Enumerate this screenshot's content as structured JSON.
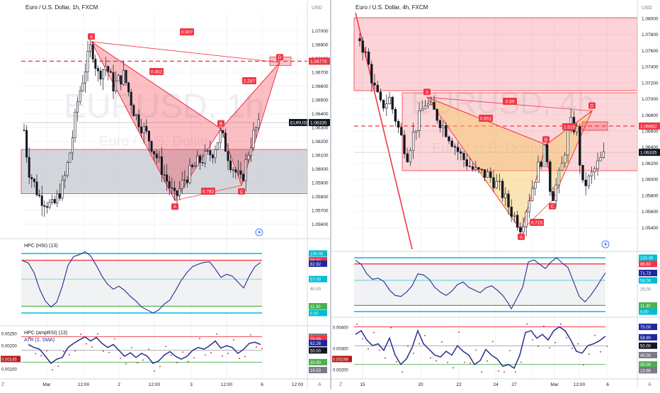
{
  "left": {
    "title": "Euro / U.S. Dollar, 1h, FXCM",
    "watermark": [
      "EURUSD, 1h",
      "Euro / U.S. Dollar"
    ],
    "axis_unit": "USD",
    "price_ticks": [
      "1.07000",
      "1.06900",
      "1.06800",
      "1.06700",
      "1.06600",
      "1.06500",
      "1.06400",
      "1.06300",
      "1.06200",
      "1.06100",
      "1.06000",
      "1.05900",
      "1.05800",
      "1.05700",
      "1.05600"
    ],
    "price_ylim": [
      1.0553,
      1.0713
    ],
    "current_price_label": "EURUSD",
    "current_price": "1.06335",
    "dashed_price": "1.06779",
    "zone_range": [
      1.0582,
      1.0614
    ],
    "pattern_points": {
      "X": 1.0692,
      "A": 1.0577,
      "B": 1.0629,
      "C": 1.0588,
      "D": 1.0677
    },
    "ratios": {
      "XB": "0.907",
      "XA_AB": "0.452",
      "BD": "2.287",
      "AC": "0.782"
    },
    "x_labels": [
      "Mar",
      "12:00",
      "2",
      "12:00",
      "3",
      "12:00",
      "6",
      "12:00"
    ],
    "ind1_title": "HPC (HSI) (13)",
    "ind1_labels": [
      "100.00",
      "88.60",
      "82.92",
      "57.00",
      "40.00",
      "11.30",
      "0.00"
    ],
    "ind2_title": "HPC (ampRSI) (13)",
    "ind2_sub": "ATR (2, SMA)",
    "ind2_labels": [
      "73.26",
      "70.00",
      "62.28",
      "50.00",
      "30.00",
      "16.53"
    ],
    "ind2_left_labels": [
      "0.00250",
      "0.00200",
      "0.00145",
      "0.00100"
    ],
    "corner_left": "Z",
    "corner_right": "A"
  },
  "right": {
    "title": "Euro / U.S. Dollar, 4h, FXCM",
    "watermark": [
      "EURUSD, 4h",
      "Euro / U.S. Dollar"
    ],
    "axis_unit": "USD",
    "price_ticks": [
      "1.08000",
      "1.07800",
      "1.07600",
      "1.07400",
      "1.07200",
      "1.07000",
      "1.06800",
      "1.06600",
      "1.06400",
      "1.06200",
      "1.06000",
      "1.05800",
      "1.05600",
      "1.05400"
    ],
    "price_ylim": [
      1.0528,
      1.0807
    ],
    "current_price": "1.06335",
    "dashed_price": "1.06662",
    "pattern_points": {
      "X": 1.0702,
      "A": 1.0536,
      "B": 1.0643,
      "C": 1.0574,
      "D": 1.0685
    },
    "ratios": {
      "XB": "0.89",
      "AB": "0.651",
      "BD": "1.515",
      "AC": "0.715"
    },
    "x_labels": [
      "15",
      "20",
      "22",
      "24",
      "27",
      "Mar",
      "12:00",
      "6"
    ],
    "ind1_labels": [
      "100.00",
      "88.60",
      "71.73",
      "58.00",
      "25.00",
      "11.30",
      "0.00"
    ],
    "ind2_labels": [
      "70.00",
      "58.90",
      "50.00",
      "40.00",
      "30.00",
      "23.86"
    ],
    "ind2_left_labels": [
      "0.00400",
      "0.00300",
      "0.00249",
      "0.00200"
    ],
    "corner_left": "Z",
    "corner_right": "A"
  },
  "colors": {
    "pattern": "#f23645",
    "up": "#ffffff",
    "down": "#131722",
    "zone_gray": "#b2b5be",
    "osc_line": "#2a2e8c",
    "band_top": "#00bcd4",
    "band_red": "#f23645",
    "band_green": "#4caf50",
    "label_blue": "#1e26a0",
    "label_cyan": "#00bcd4",
    "label_gray": "#787b86",
    "label_red": "#f23645",
    "label_green": "#4caf50",
    "label_dark": "#131722",
    "label_teal": "#26a69a"
  }
}
